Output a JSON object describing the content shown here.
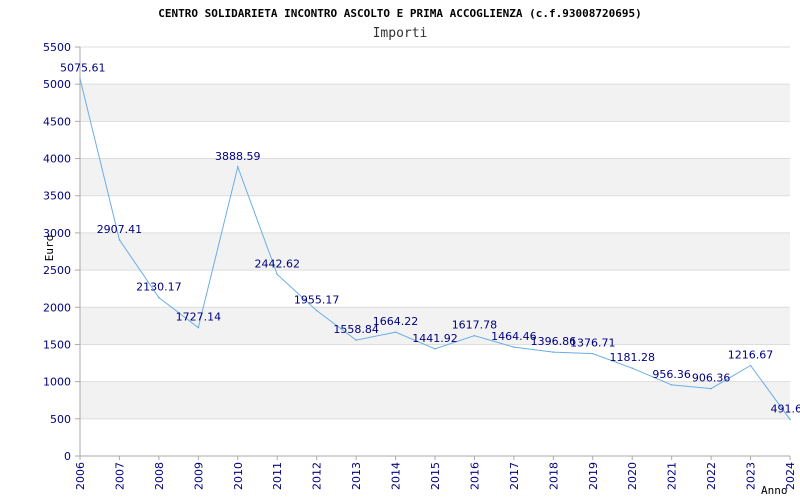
{
  "chart_data": {
    "type": "line",
    "title": "CENTRO SOLIDARIETA INCONTRO ASCOLTO E PRIMA ACCOGLIENZA (c.f.93008720695)",
    "subtitle": "Importi",
    "xlabel": "Anno",
    "ylabel": "Euro",
    "ylim": [
      0,
      5500
    ],
    "yticks": [
      0,
      500,
      1000,
      1500,
      2000,
      2500,
      3000,
      3500,
      4000,
      4500,
      5000,
      5500
    ],
    "categories": [
      "2006",
      "2007",
      "2008",
      "2009",
      "2010",
      "2011",
      "2012",
      "2013",
      "2014",
      "2015",
      "2016",
      "2017",
      "2018",
      "2019",
      "2020",
      "2021",
      "2022",
      "2023",
      "2024"
    ],
    "series": [
      {
        "values": [
          5075.61,
          2907.41,
          2130.17,
          1727.14,
          3888.59,
          2442.62,
          1955.17,
          1558.84,
          1664.22,
          1441.92,
          1617.78,
          1464.46,
          1396.86,
          1376.71,
          1181.28,
          956.36,
          906.36,
          1216.67,
          491.6
        ],
        "labels": [
          "5075.61",
          "2907.41",
          "2130.17",
          "1727.14",
          "3888.59",
          "2442.62",
          "1955.17",
          "1558.84",
          "1664.22",
          "1441.92",
          "1617.78",
          "1464.46",
          "1396.86",
          "1376.71",
          "1181.28",
          "956.36",
          "906.36",
          "1216.67",
          "491.6"
        ]
      }
    ],
    "grid": true,
    "colors": {
      "line": "#6aaee8",
      "band": "#f2f2f2",
      "grid": "#dddddd",
      "axis": "#aaaaaa",
      "text": "#000080"
    }
  }
}
